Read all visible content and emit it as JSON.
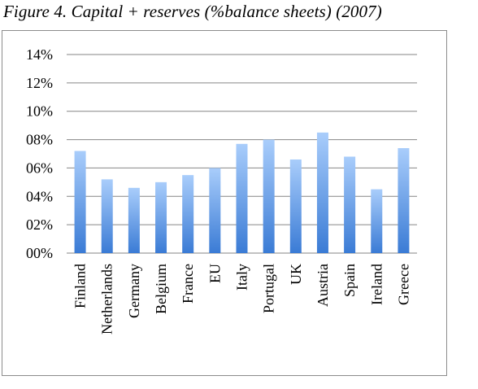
{
  "figure": {
    "title": "Figure 4. Capital + reserves (%balance sheets) (2007)"
  },
  "colors": {
    "bar_top": "#a9cdfb",
    "bar_bottom": "#3a7bd5",
    "gridline": "#868686",
    "axis": "#868686"
  },
  "chart_data": {
    "type": "bar",
    "title": "Figure 4. Capital + reserves (%balance sheets) (2007)",
    "xlabel": "",
    "ylabel": "",
    "ylim": [
      0,
      14
    ],
    "y_ticks": [
      0,
      2,
      4,
      6,
      8,
      10,
      12,
      14
    ],
    "y_tick_labels": [
      "00%",
      "02%",
      "04%",
      "06%",
      "08%",
      "10%",
      "12%",
      "14%"
    ],
    "grid": true,
    "legend": "none",
    "categories": [
      "Finland",
      "Netherlands",
      "Germany",
      "Belgium",
      "France",
      "EU",
      "Italy",
      "Portugal",
      "UK",
      "Austria",
      "Spain",
      "Ireland",
      "Greece"
    ],
    "values": [
      7.2,
      5.2,
      4.6,
      5.0,
      5.5,
      6.0,
      7.7,
      8.0,
      6.6,
      8.5,
      6.8,
      4.5,
      7.4
    ]
  }
}
